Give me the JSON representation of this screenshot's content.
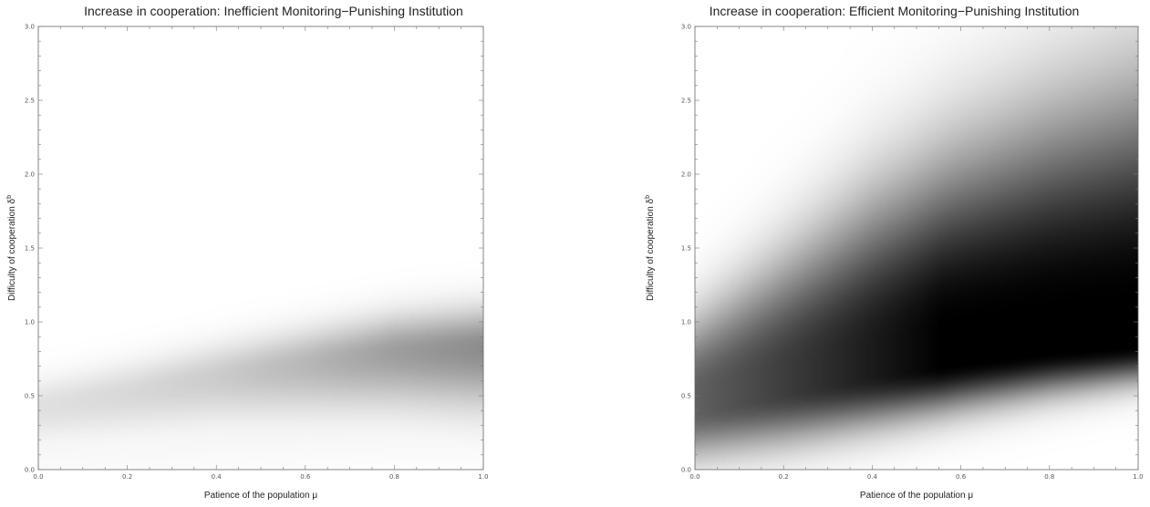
{
  "chart_data": [
    {
      "type": "heatmap",
      "title": "Increase in cooperation: Inefficient Monitoring−Punishing Institution",
      "xlabel": "Patience of the population μ",
      "ylabel": "Difficulty of cooperation δ",
      "ylabel_sup": "b",
      "xlim": [
        0,
        1
      ],
      "ylim": [
        0,
        3
      ],
      "xticks": [
        "0.0",
        "0.2",
        "0.4",
        "0.6",
        "0.8",
        "1.0"
      ],
      "yticks": [
        "0.0",
        "0.5",
        "1.0",
        "1.5",
        "2.0",
        "2.5",
        "3.0"
      ],
      "colormap": "white (no increase) to black (large increase)",
      "grid": false,
      "ridge": [
        {
          "x": 0.0,
          "center": 0.42,
          "peak_darkness": 0.12
        },
        {
          "x": 0.2,
          "center": 0.52,
          "peak_darkness": 0.15
        },
        {
          "x": 0.4,
          "center": 0.63,
          "peak_darkness": 0.2
        },
        {
          "x": 0.6,
          "center": 0.72,
          "peak_darkness": 0.28
        },
        {
          "x": 0.8,
          "center": 0.8,
          "peak_darkness": 0.38
        },
        {
          "x": 1.0,
          "center": 0.83,
          "peak_darkness": 0.45
        }
      ]
    },
    {
      "type": "heatmap",
      "title": "Increase in cooperation: Efficient Monitoring−Punishing Institution",
      "xlabel": "Patience of the population μ",
      "ylabel": "Difficulty of cooperation δ",
      "ylabel_sup": "b",
      "xlim": [
        0,
        1
      ],
      "ylim": [
        0,
        3
      ],
      "xticks": [
        "0.0",
        "0.2",
        "0.4",
        "0.6",
        "0.8",
        "1.0"
      ],
      "yticks": [
        "0.0",
        "0.5",
        "1.0",
        "1.5",
        "2.0",
        "2.5",
        "3.0"
      ],
      "colormap": "white (no increase) to black (large increase)",
      "grid": false,
      "dark_band": [
        {
          "x": 0.0,
          "lower": 0.08,
          "center": 0.42,
          "upper": 1.05
        },
        {
          "x": 0.2,
          "lower": 0.18,
          "center": 0.55,
          "upper": 1.45
        },
        {
          "x": 0.4,
          "lower": 0.3,
          "center": 0.66,
          "upper": 1.85
        },
        {
          "x": 0.6,
          "lower": 0.42,
          "center": 0.75,
          "upper": 2.15
        },
        {
          "x": 0.8,
          "lower": 0.52,
          "center": 0.82,
          "upper": 2.4
        },
        {
          "x": 1.0,
          "lower": 0.6,
          "center": 0.86,
          "upper": 2.6
        }
      ]
    }
  ]
}
